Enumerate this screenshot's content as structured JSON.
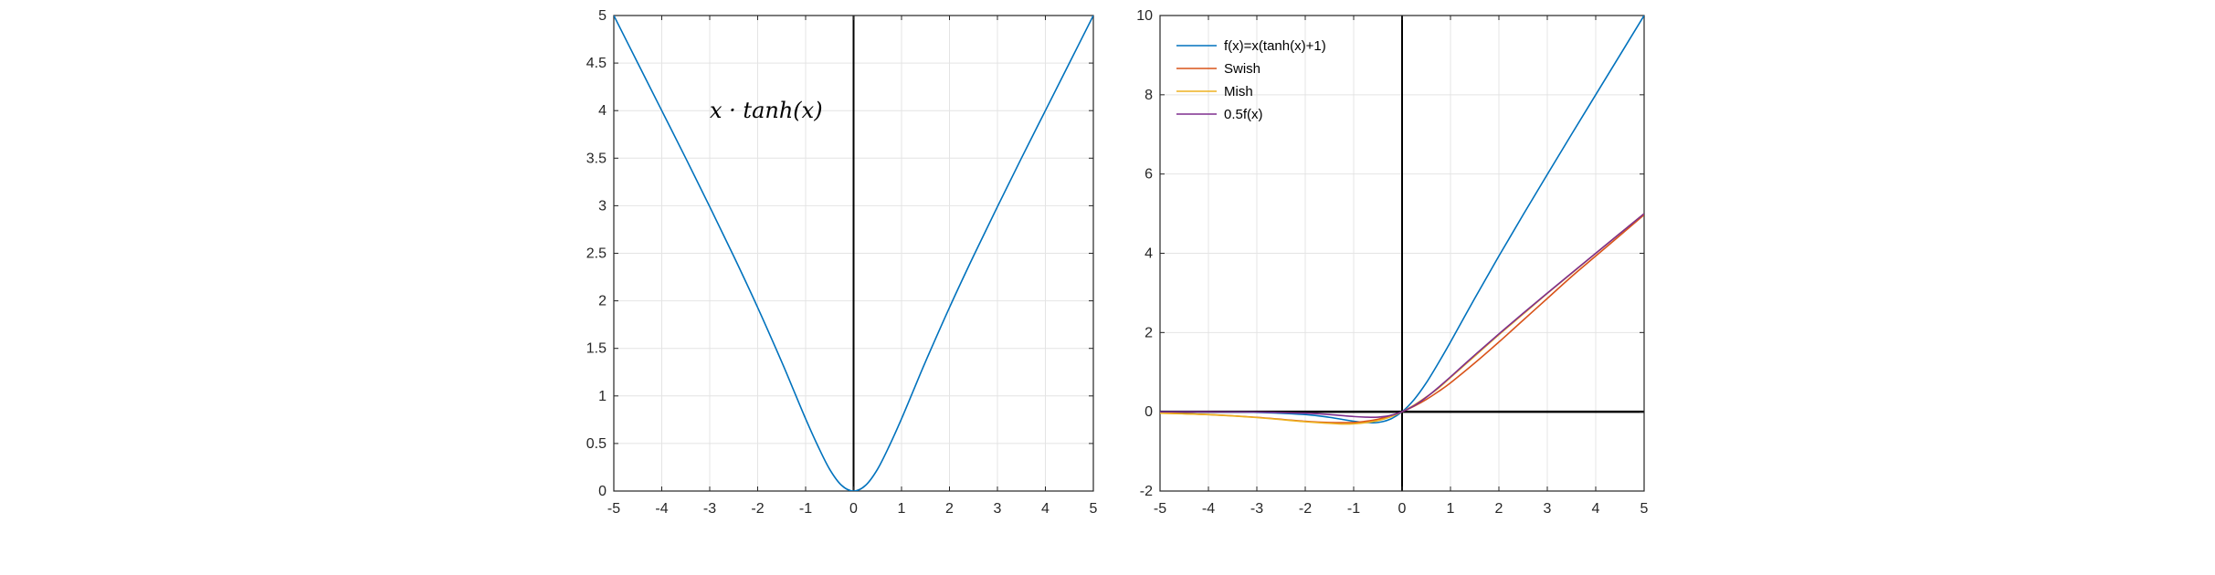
{
  "chart_data": [
    {
      "type": "line",
      "title": "",
      "xlabel": "",
      "ylabel": "",
      "xlim": [
        -5,
        5
      ],
      "ylim": [
        0,
        5
      ],
      "xticks": [
        -5,
        -4,
        -3,
        -2,
        -1,
        0,
        1,
        2,
        3,
        4,
        5
      ],
      "xtick_labels": [
        "-5",
        "-4",
        "-3",
        "-2",
        "-1",
        "0",
        "1",
        "2",
        "3",
        "4",
        "5"
      ],
      "yticks": [
        0,
        0.5,
        1,
        1.5,
        2,
        2.5,
        3,
        3.5,
        4,
        4.5,
        5
      ],
      "ytick_labels": [
        "0",
        "0.5",
        "1",
        "1.5",
        "2",
        "2.5",
        "3",
        "3.5",
        "4",
        "4.5",
        "5"
      ],
      "grid": true,
      "annotation": "x · tanh(x)",
      "series": [
        {
          "color": "#0072BD",
          "x": [
            -5,
            -4.5,
            -4,
            -3.5,
            -3,
            -2.5,
            -2,
            -1.5,
            -1.25,
            -1,
            -0.75,
            -0.5,
            -0.25,
            0,
            0.25,
            0.5,
            0.75,
            1,
            1.25,
            1.5,
            2,
            2.5,
            3,
            3.5,
            4,
            4.5,
            5
          ],
          "y": [
            5,
            4.5,
            4,
            3.5,
            2.99,
            2.47,
            1.93,
            1.36,
            1.06,
            0.76,
            0.48,
            0.23,
            0.06,
            0,
            0.06,
            0.23,
            0.48,
            0.76,
            1.06,
            1.36,
            1.93,
            2.47,
            2.99,
            3.5,
            4,
            4.5,
            5
          ]
        }
      ]
    },
    {
      "type": "line",
      "title": "",
      "xlabel": "",
      "ylabel": "",
      "xlim": [
        -5,
        5
      ],
      "ylim": [
        -2,
        10
      ],
      "xticks": [
        -5,
        -4,
        -3,
        -2,
        -1,
        0,
        1,
        2,
        3,
        4,
        5
      ],
      "xtick_labels": [
        "-5",
        "-4",
        "-3",
        "-2",
        "-1",
        "0",
        "1",
        "2",
        "3",
        "4",
        "5"
      ],
      "yticks": [
        -2,
        0,
        2,
        4,
        6,
        8,
        10
      ],
      "ytick_labels": [
        "-2",
        "0",
        "2",
        "4",
        "6",
        "8",
        "10"
      ],
      "grid": true,
      "legend_position": "top-left",
      "series": [
        {
          "name": "f(x)=x(tanh(x)+1)",
          "color": "#0072BD",
          "x": [
            -5,
            -4,
            -3,
            -2,
            -1.5,
            -1,
            -0.75,
            -0.5,
            -0.25,
            0,
            0.25,
            0.5,
            0.75,
            1,
            1.5,
            2,
            2.5,
            3,
            3.5,
            4,
            4.5,
            5
          ],
          "y": [
            0,
            -0.003,
            -0.015,
            -0.07,
            -0.14,
            -0.24,
            -0.27,
            -0.27,
            -0.19,
            0,
            0.31,
            0.73,
            1.23,
            1.76,
            2.86,
            3.93,
            4.97,
            5.99,
            7.0,
            8.0,
            9.0,
            10.0
          ]
        },
        {
          "name": "Swish",
          "color": "#D95319",
          "x": [
            -5,
            -4,
            -3,
            -2,
            -1.5,
            -1,
            -0.75,
            -0.5,
            -0.25,
            0,
            0.25,
            0.5,
            0.75,
            1,
            1.5,
            2,
            2.5,
            3,
            3.5,
            4,
            4.5,
            5
          ],
          "y": [
            -0.03,
            -0.07,
            -0.14,
            -0.24,
            -0.27,
            -0.27,
            -0.24,
            -0.19,
            -0.11,
            0,
            0.14,
            0.31,
            0.51,
            0.73,
            1.23,
            1.76,
            2.31,
            2.86,
            3.41,
            3.93,
            4.45,
            4.97
          ]
        },
        {
          "name": "Mish",
          "color": "#EDB120",
          "x": [
            -5,
            -4,
            -3,
            -2,
            -1.5,
            -1.2,
            -1,
            -0.75,
            -0.5,
            -0.25,
            0,
            0.25,
            0.5,
            0.75,
            1,
            1.5,
            2,
            2.5,
            3,
            3.5,
            4,
            4.5,
            5
          ],
          "y": [
            -0.034,
            -0.073,
            -0.146,
            -0.252,
            -0.291,
            -0.309,
            -0.303,
            -0.274,
            -0.222,
            -0.134,
            0,
            0.17,
            0.375,
            0.595,
            0.865,
            1.403,
            1.944,
            2.464,
            2.987,
            3.49,
            3.997,
            4.5,
            5.0
          ]
        },
        {
          "name": "0.5f(x)",
          "color": "#7E2F8E",
          "x": [
            -5,
            -4,
            -3,
            -2,
            -1.5,
            -1,
            -0.75,
            -0.5,
            -0.25,
            0,
            0.25,
            0.5,
            0.75,
            1,
            1.5,
            2,
            2.5,
            3,
            3.5,
            4,
            4.5,
            5
          ],
          "y": [
            0,
            -0.0015,
            -0.0075,
            -0.035,
            -0.07,
            -0.12,
            -0.135,
            -0.135,
            -0.095,
            0,
            0.155,
            0.365,
            0.615,
            0.88,
            1.43,
            1.965,
            2.485,
            2.995,
            3.5,
            4.0,
            4.5,
            5.0
          ]
        }
      ]
    }
  ]
}
